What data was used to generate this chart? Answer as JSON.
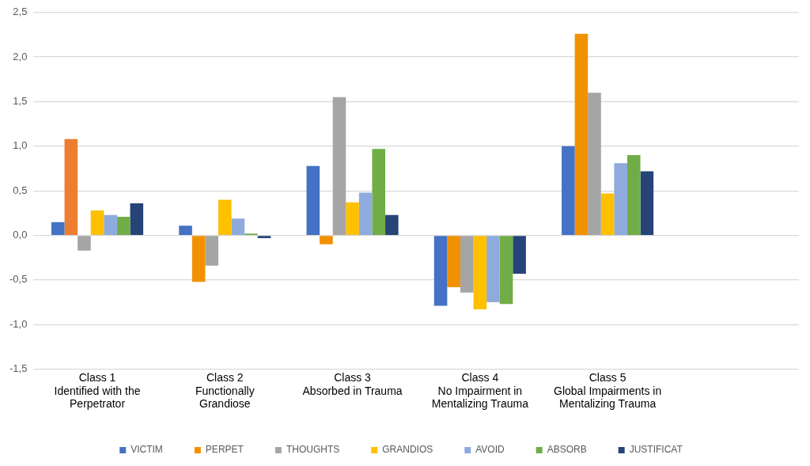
{
  "chart_data": {
    "type": "bar",
    "categories": [
      "Class 1\nIdentified with the\nPerpetrator",
      "Class 2\nFunctionally\nGrandiose",
      "Class 3\nAbsorbed in Trauma",
      "Class 4\nNo Impairment in\nMentalizing Trauma",
      "Class 5\nGlobal Impairments in\nMentalizing Trauma",
      null
    ],
    "series": [
      {
        "name": "VICTIM",
        "color": "#4472c4",
        "values": [
          0.15,
          0.11,
          0.78,
          -0.79,
          1.0,
          null
        ]
      },
      {
        "name": "PERPET",
        "color": "#f29100",
        "colors": [
          "#ed7d31",
          "#f29100",
          "#f29100",
          "#f29100",
          "#f29100",
          "#f29100"
        ],
        "values": [
          1.08,
          -0.52,
          -0.1,
          -0.58,
          2.26,
          null
        ]
      },
      {
        "name": "THOUGHTS",
        "color": "#a5a5a5",
        "values": [
          -0.17,
          -0.34,
          1.55,
          -0.64,
          1.6,
          null
        ]
      },
      {
        "name": "GRANDIOS",
        "color": "#ffc000",
        "values": [
          0.28,
          0.4,
          0.37,
          -0.83,
          0.47,
          null
        ]
      },
      {
        "name": "AVOID",
        "color": "#8faadc",
        "values": [
          0.23,
          0.19,
          0.48,
          -0.75,
          0.81,
          null
        ]
      },
      {
        "name": "ABSORB",
        "color": "#70ad47",
        "values": [
          0.21,
          0.02,
          0.97,
          -0.77,
          0.9,
          null
        ]
      },
      {
        "name": "JUSTIFICAT",
        "color": "#264478",
        "values": [
          0.36,
          -0.03,
          0.23,
          -0.43,
          0.72,
          null
        ]
      }
    ],
    "ylim": [
      -1.5,
      2.5
    ],
    "yticks": [
      {
        "value": -1.5,
        "label": "-1,5"
      },
      {
        "value": -1,
        "label": "-1,0"
      },
      {
        "value": -0.5,
        "label": "-0,5"
      },
      {
        "value": 0,
        "label": "0,0"
      },
      {
        "value": 0.5,
        "label": "0,5"
      },
      {
        "value": 1,
        "label": "1,0"
      },
      {
        "value": 1.5,
        "label": "1,5"
      },
      {
        "value": 2,
        "label": "2,0"
      },
      {
        "value": 2.5,
        "label": "2,5"
      }
    ],
    "grid": "y",
    "legend": "bottom"
  }
}
